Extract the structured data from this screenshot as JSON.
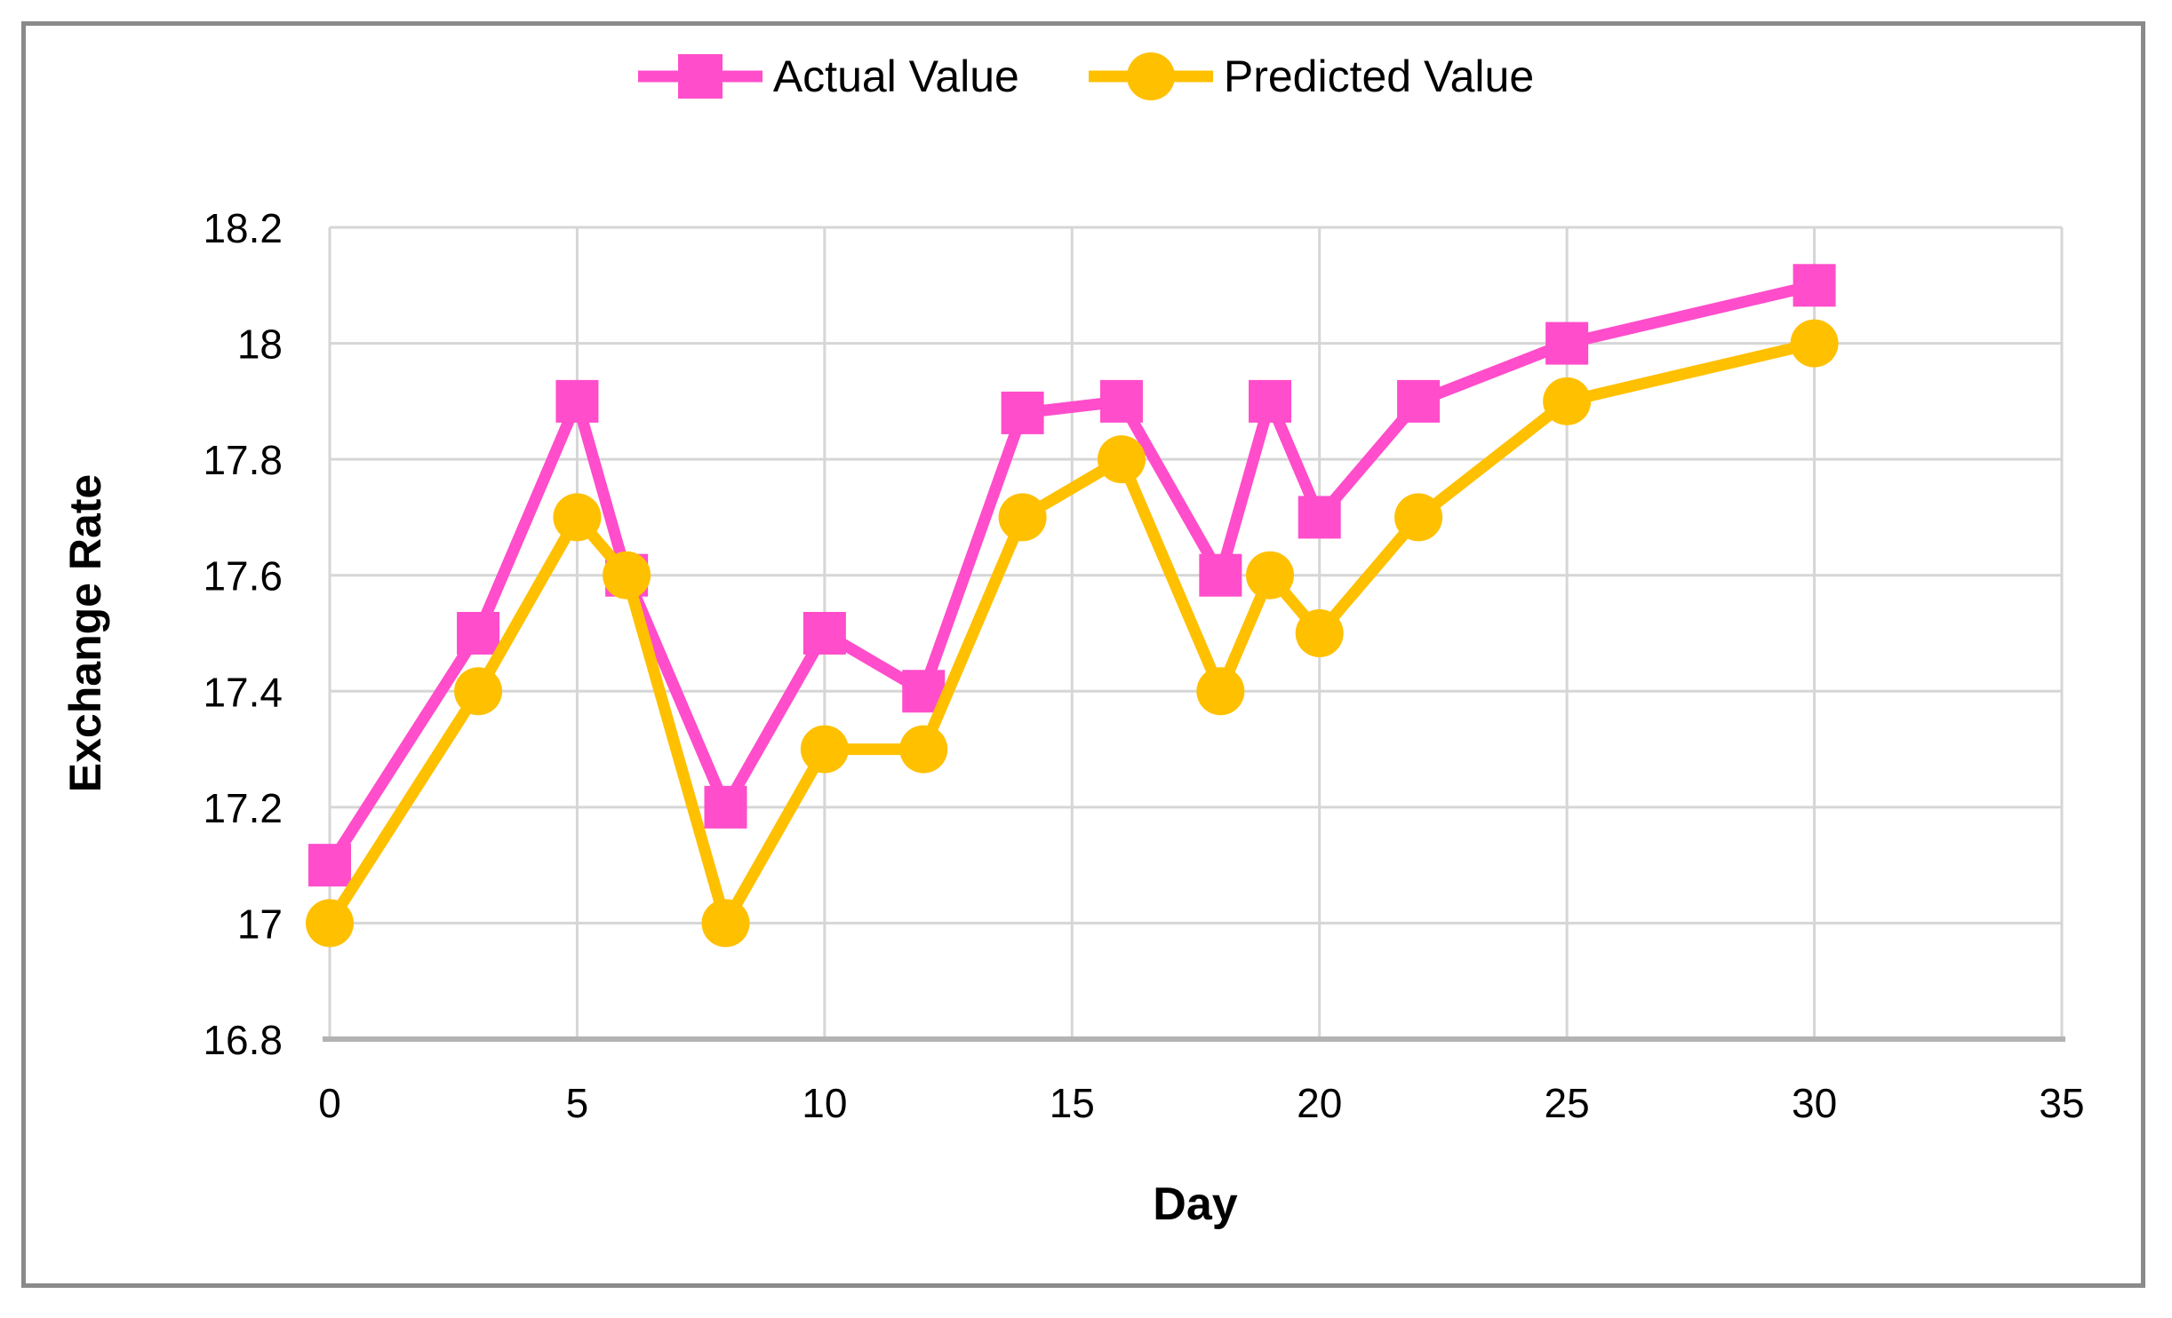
{
  "chart_data": {
    "type": "line",
    "title": "",
    "xlabel": "Day",
    "ylabel": "Exchange Rate",
    "xlim": [
      0,
      35
    ],
    "ylim": [
      16.8,
      18.2
    ],
    "grid": true,
    "legend_position": "top-center",
    "x_ticks": [
      0,
      5,
      10,
      15,
      20,
      25,
      30,
      35
    ],
    "x_tick_labels": [
      "0",
      "5",
      "10",
      "15",
      "20",
      "25",
      "30",
      "35"
    ],
    "y_ticks": [
      16.8,
      17,
      17.2,
      17.4,
      17.6,
      17.8,
      18,
      18.2
    ],
    "y_tick_labels": [
      "16.8",
      "17",
      "17.2",
      "17.4",
      "17.6",
      "17.8",
      "18",
      "18.2"
    ],
    "x": [
      0,
      3,
      5,
      6,
      8,
      10,
      12,
      14,
      16,
      18,
      19,
      20,
      22,
      25,
      30
    ],
    "series": [
      {
        "id": "actual-series",
        "name": "Actual Value",
        "marker": "square",
        "color": "#FF4DCB",
        "values": [
          17.1,
          17.5,
          17.9,
          17.6,
          17.2,
          17.5,
          17.4,
          17.88,
          17.9,
          17.6,
          17.9,
          17.7,
          17.9,
          18,
          18.1
        ]
      },
      {
        "id": "predicted-series",
        "name": "Predicted Value",
        "marker": "circle",
        "color": "#FFC000",
        "values": [
          17,
          17.4,
          17.7,
          17.6,
          17,
          17.3,
          17.3,
          17.7,
          17.8,
          17.4,
          17.6,
          17.5,
          17.7,
          17.9,
          18
        ]
      }
    ],
    "colors": {
      "gridline": "#D6D6D6",
      "axis_line": "#B3B3B3",
      "frame": "#8A8A8A",
      "text": "#000000"
    }
  }
}
